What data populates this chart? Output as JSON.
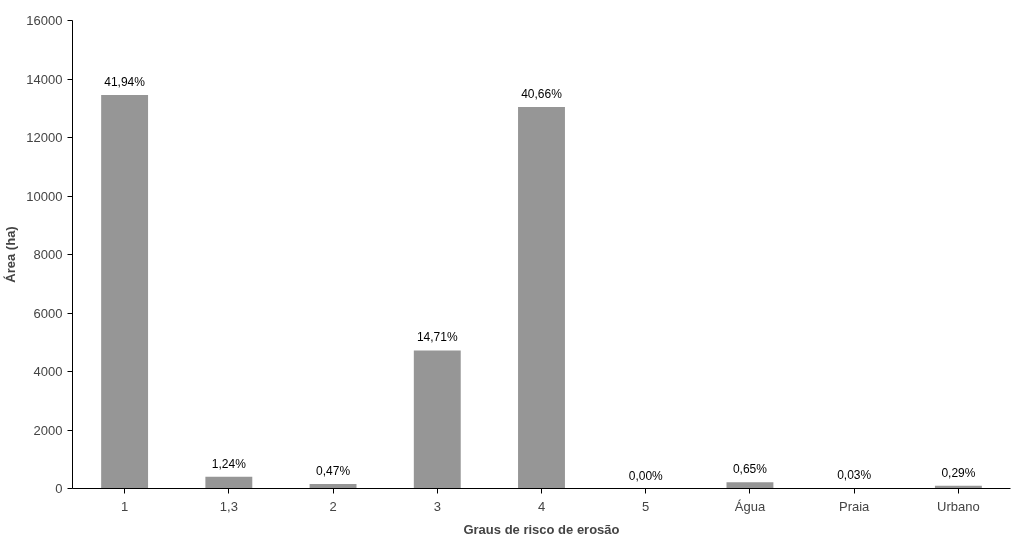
{
  "chart_data": {
    "type": "bar",
    "xlabel": "Graus de risco de erosão",
    "ylabel": "Área (ha)",
    "categories": [
      "1",
      "1,3",
      "2",
      "3",
      "4",
      "5",
      "Água",
      "Praia",
      "Urbano"
    ],
    "values": [
      13450,
      400,
      150,
      4720,
      13040,
      0,
      210,
      10,
      90
    ],
    "annotations": [
      {
        "text": "41,94%",
        "x": "1",
        "y": 13450
      },
      {
        "text": "1,24%",
        "x": "1,3",
        "y": 400
      },
      {
        "text": "0,47%",
        "x": "2",
        "y": 150
      },
      {
        "text": "14,71%",
        "x": "3",
        "y": 4720
      },
      {
        "text": "40,66%",
        "x": "4",
        "y": 13040
      },
      {
        "text": "0,00%",
        "x": "5",
        "y": 0
      },
      {
        "text": "0,65%",
        "x": "Água",
        "y": 210
      },
      {
        "text": "0,03%",
        "x": "Praia",
        "y": 10
      },
      {
        "text": "0,29%",
        "x": "Urbano",
        "y": 90
      }
    ],
    "color": "#969696",
    "ylim": [
      0,
      16000
    ],
    "yticks": [
      0,
      2000,
      4000,
      6000,
      8000,
      10000,
      12000,
      14000,
      16000
    ],
    "grid": false
  }
}
